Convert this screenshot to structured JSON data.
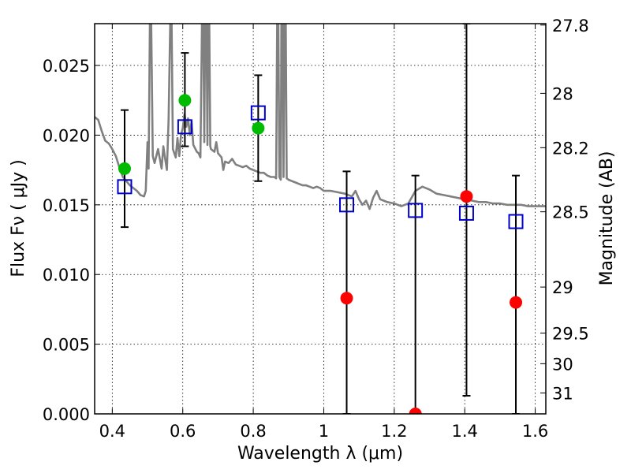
{
  "chart_data": {
    "type": "scatter",
    "title": "",
    "xlabel": "Wavelength  λ (μm)",
    "ylabel": "Flux  Fν  ( μJy )",
    "y2label": "Magnitude (AB)",
    "xlim": [
      0.35,
      1.63
    ],
    "ylim": [
      0.0,
      0.028
    ],
    "grid": true,
    "legend": "none",
    "x_ticks": [
      0.4,
      0.6,
      0.8,
      1.0,
      1.2,
      1.4,
      1.6
    ],
    "x_tick_labels": [
      "0.4",
      "0.6",
      "0.8",
      "1",
      "1.2",
      "1.4",
      "1.6"
    ],
    "y_ticks": [
      0.0,
      0.005,
      0.01,
      0.015,
      0.02,
      0.025
    ],
    "y_tick_labels": [
      "0.000",
      "0.005",
      "0.010",
      "0.015",
      "0.020",
      "0.025"
    ],
    "mag_ticks": [
      {
        "label": "27.8",
        "flux": 0.0279
      },
      {
        "label": "28",
        "flux": 0.023
      },
      {
        "label": "28.2",
        "flux": 0.0191
      },
      {
        "label": "28.5",
        "flux": 0.0145
      },
      {
        "label": "29",
        "flux": 0.0091
      },
      {
        "label": "29.5",
        "flux": 0.0058
      },
      {
        "label": "30",
        "flux": 0.0036
      },
      {
        "label": "31",
        "flux": 0.0015
      }
    ],
    "colors": {
      "model": "#808080",
      "observed_detected": "#00bb00",
      "observed_undetected": "#ff0000",
      "model_photometry": "#0000cc",
      "errorbar": "#000000"
    },
    "observed": [
      {
        "x": 0.435,
        "y": 0.0176,
        "err_low": 0.0042,
        "err_high": 0.0042,
        "detected": true
      },
      {
        "x": 0.606,
        "y": 0.0225,
        "err_low": 0.0033,
        "err_high": 0.0034,
        "detected": true
      },
      {
        "x": 0.814,
        "y": 0.0205,
        "err_low": 0.0038,
        "err_high": 0.0038,
        "detected": true
      },
      {
        "x": 1.065,
        "y": 0.0083,
        "err_low": 0.0083,
        "err_high": 0.0091,
        "detected": false
      },
      {
        "x": 1.26,
        "y": 0.0,
        "err_low": 0.0,
        "err_high": 0.0171,
        "detected": false
      },
      {
        "x": 1.405,
        "y": 0.0156,
        "err_low": 0.0143,
        "err_high": 0.0124,
        "detected": false
      },
      {
        "x": 1.545,
        "y": 0.008,
        "err_low": 0.008,
        "err_high": 0.0091,
        "detected": false
      }
    ],
    "model_photometry": [
      {
        "x": 0.435,
        "y": 0.0163
      },
      {
        "x": 0.606,
        "y": 0.0206
      },
      {
        "x": 0.814,
        "y": 0.0216
      },
      {
        "x": 1.065,
        "y": 0.015
      },
      {
        "x": 1.26,
        "y": 0.0146
      },
      {
        "x": 1.405,
        "y": 0.0144
      },
      {
        "x": 1.545,
        "y": 0.0138
      }
    ],
    "model_spectrum": [
      [
        0.35,
        0.0213
      ],
      [
        0.36,
        0.0211
      ],
      [
        0.37,
        0.0203
      ],
      [
        0.38,
        0.0196
      ],
      [
        0.39,
        0.0194
      ],
      [
        0.4,
        0.019
      ],
      [
        0.41,
        0.0185
      ],
      [
        0.42,
        0.0177
      ],
      [
        0.43,
        0.017
      ],
      [
        0.44,
        0.0167
      ],
      [
        0.45,
        0.0164
      ],
      [
        0.46,
        0.0162
      ],
      [
        0.47,
        0.016
      ],
      [
        0.48,
        0.0157
      ],
      [
        0.49,
        0.0156
      ],
      [
        0.495,
        0.016
      ],
      [
        0.5,
        0.0195
      ],
      [
        0.503,
        0.0176
      ],
      [
        0.507,
        0.029
      ],
      [
        0.51,
        0.029
      ],
      [
        0.515,
        0.0185
      ],
      [
        0.52,
        0.018
      ],
      [
        0.53,
        0.019
      ],
      [
        0.54,
        0.0176
      ],
      [
        0.545,
        0.0192
      ],
      [
        0.55,
        0.0183
      ],
      [
        0.555,
        0.0175
      ],
      [
        0.56,
        0.0212
      ],
      [
        0.565,
        0.029
      ],
      [
        0.568,
        0.029
      ],
      [
        0.572,
        0.019
      ],
      [
        0.58,
        0.0184
      ],
      [
        0.585,
        0.0198
      ],
      [
        0.59,
        0.0185
      ],
      [
        0.595,
        0.02
      ],
      [
        0.6,
        0.0205
      ],
      [
        0.605,
        0.0215
      ],
      [
        0.61,
        0.0206
      ],
      [
        0.615,
        0.0212
      ],
      [
        0.62,
        0.02
      ],
      [
        0.625,
        0.021
      ],
      [
        0.63,
        0.0193
      ],
      [
        0.64,
        0.0188
      ],
      [
        0.645,
        0.0187
      ],
      [
        0.65,
        0.0184
      ],
      [
        0.655,
        0.029
      ],
      [
        0.658,
        0.029
      ],
      [
        0.661,
        0.0195
      ],
      [
        0.664,
        0.029
      ],
      [
        0.667,
        0.029
      ],
      [
        0.67,
        0.0193
      ],
      [
        0.672,
        0.029
      ],
      [
        0.675,
        0.029
      ],
      [
        0.678,
        0.0192
      ],
      [
        0.68,
        0.019
      ],
      [
        0.69,
        0.0188
      ],
      [
        0.695,
        0.0195
      ],
      [
        0.7,
        0.0187
      ],
      [
        0.71,
        0.0184
      ],
      [
        0.715,
        0.0175
      ],
      [
        0.72,
        0.0181
      ],
      [
        0.73,
        0.018
      ],
      [
        0.74,
        0.0183
      ],
      [
        0.75,
        0.0179
      ],
      [
        0.76,
        0.0178
      ],
      [
        0.77,
        0.0177
      ],
      [
        0.78,
        0.0178
      ],
      [
        0.79,
        0.0176
      ],
      [
        0.8,
        0.0175
      ],
      [
        0.81,
        0.0174
      ],
      [
        0.82,
        0.0173
      ],
      [
        0.83,
        0.0173
      ],
      [
        0.84,
        0.0171
      ],
      [
        0.85,
        0.017
      ],
      [
        0.86,
        0.017
      ],
      [
        0.865,
        0.0169
      ],
      [
        0.868,
        0.029
      ],
      [
        0.871,
        0.029
      ],
      [
        0.874,
        0.017
      ],
      [
        0.878,
        0.0168
      ],
      [
        0.88,
        0.029
      ],
      [
        0.883,
        0.029
      ],
      [
        0.886,
        0.017
      ],
      [
        0.889,
        0.029
      ],
      [
        0.892,
        0.029
      ],
      [
        0.895,
        0.0169
      ],
      [
        0.9,
        0.0168
      ],
      [
        0.91,
        0.0167
      ],
      [
        0.92,
        0.0166
      ],
      [
        0.93,
        0.0165
      ],
      [
        0.94,
        0.0164
      ],
      [
        0.95,
        0.0164
      ],
      [
        0.96,
        0.0163
      ],
      [
        0.97,
        0.0162
      ],
      [
        0.98,
        0.0163
      ],
      [
        0.99,
        0.0162
      ],
      [
        1.0,
        0.016
      ],
      [
        1.02,
        0.016
      ],
      [
        1.04,
        0.0159
      ],
      [
        1.06,
        0.0158
      ],
      [
        1.08,
        0.0156
      ],
      [
        1.09,
        0.016
      ],
      [
        1.1,
        0.0154
      ],
      [
        1.11,
        0.015
      ],
      [
        1.12,
        0.0153
      ],
      [
        1.13,
        0.0147
      ],
      [
        1.14,
        0.0155
      ],
      [
        1.15,
        0.016
      ],
      [
        1.16,
        0.0154
      ],
      [
        1.17,
        0.0153
      ],
      [
        1.18,
        0.0152
      ],
      [
        1.2,
        0.0151
      ],
      [
        1.22,
        0.0149
      ],
      [
        1.24,
        0.0151
      ],
      [
        1.26,
        0.016
      ],
      [
        1.28,
        0.0163
      ],
      [
        1.3,
        0.0161
      ],
      [
        1.32,
        0.0158
      ],
      [
        1.34,
        0.0157
      ],
      [
        1.36,
        0.0156
      ],
      [
        1.38,
        0.0155
      ],
      [
        1.4,
        0.0154
      ],
      [
        1.42,
        0.0153
      ],
      [
        1.44,
        0.0152
      ],
      [
        1.46,
        0.0152
      ],
      [
        1.48,
        0.0151
      ],
      [
        1.5,
        0.0151
      ],
      [
        1.52,
        0.015
      ],
      [
        1.54,
        0.015
      ],
      [
        1.56,
        0.015
      ],
      [
        1.58,
        0.0149
      ],
      [
        1.6,
        0.0149
      ],
      [
        1.63,
        0.0149
      ]
    ]
  }
}
